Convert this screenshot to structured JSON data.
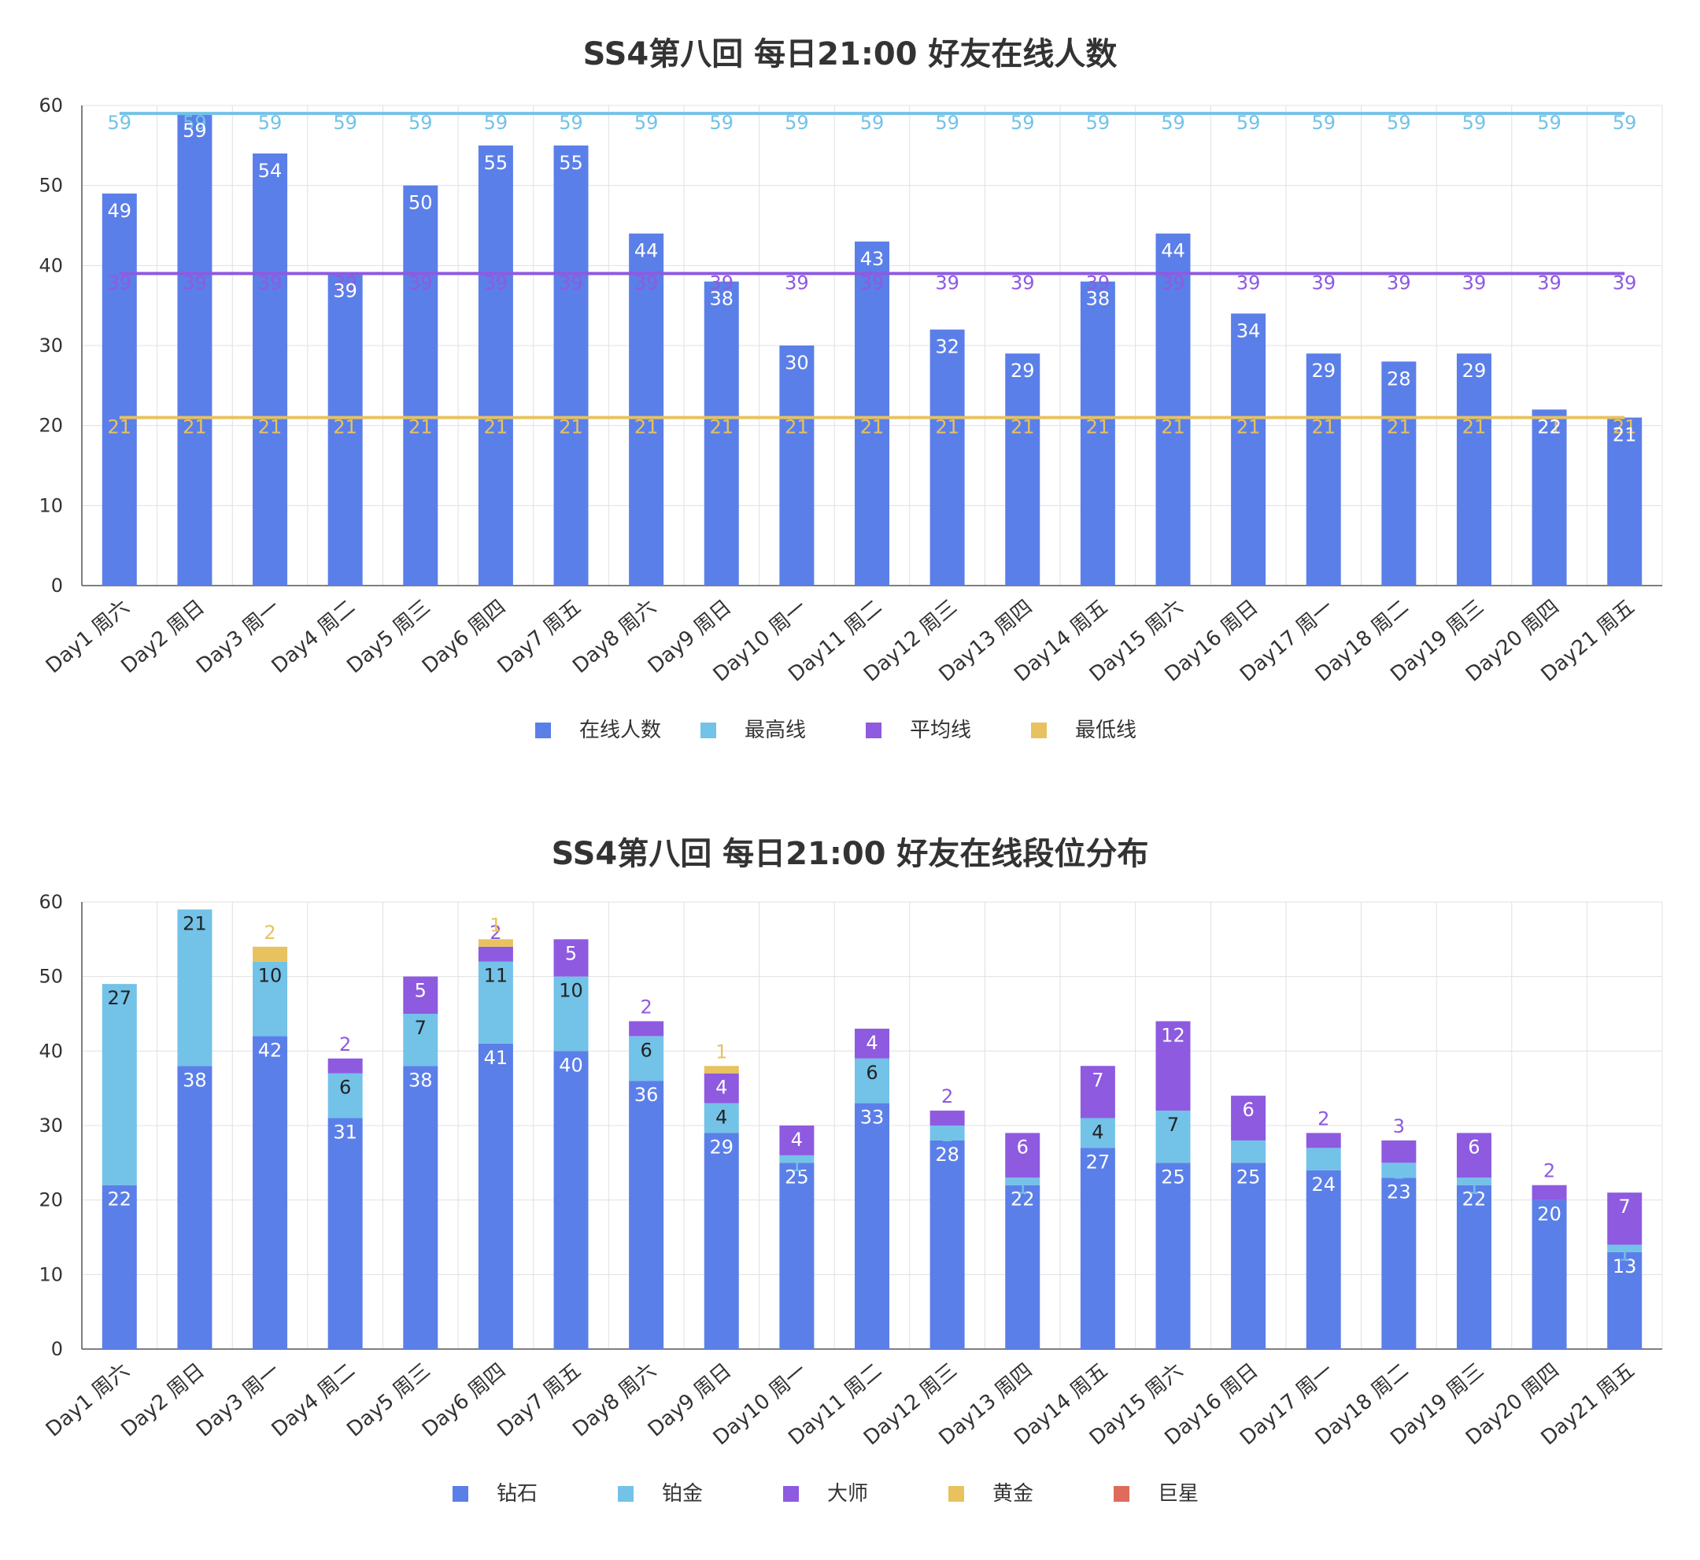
{
  "chart_data": [
    {
      "type": "bar",
      "title": "SS4第八回 每日21:00 好友在线人数",
      "categories": [
        "Day1 周六",
        "Day2 周日",
        "Day3 周一",
        "Day4 周二",
        "Day5 周三",
        "Day6 周四",
        "Day7 周五",
        "Day8 周六",
        "Day9 周日",
        "Day10 周一",
        "Day11 周二",
        "Day12 周三",
        "Day13 周四",
        "Day14 周五",
        "Day15 周六",
        "Day16 周日",
        "Day17 周一",
        "Day18 周二",
        "Day19 周三",
        "Day20 周四",
        "Day21 周五"
      ],
      "ylim": [
        0,
        60
      ],
      "yticks": [
        0,
        10,
        20,
        30,
        40,
        50,
        60
      ],
      "series": [
        {
          "name": "在线人数",
          "kind": "bar",
          "color": "#5b7fe8",
          "values": [
            49,
            59,
            54,
            39,
            50,
            55,
            55,
            44,
            38,
            30,
            43,
            32,
            29,
            38,
            44,
            34,
            29,
            28,
            29,
            22,
            21
          ]
        },
        {
          "name": "最高线",
          "kind": "line",
          "color": "#73c2e8",
          "values": [
            59,
            59,
            59,
            59,
            59,
            59,
            59,
            59,
            59,
            59,
            59,
            59,
            59,
            59,
            59,
            59,
            59,
            59,
            59,
            59,
            59
          ]
        },
        {
          "name": "平均线",
          "kind": "line",
          "color": "#8e5ae0",
          "values": [
            39,
            39,
            39,
            39,
            39,
            39,
            39,
            39,
            39,
            39,
            39,
            39,
            39,
            39,
            39,
            39,
            39,
            39,
            39,
            39,
            39
          ]
        },
        {
          "name": "最低线",
          "kind": "line",
          "color": "#e8c25e",
          "values": [
            21,
            21,
            21,
            21,
            21,
            21,
            21,
            21,
            21,
            21,
            21,
            21,
            21,
            21,
            21,
            21,
            21,
            21,
            21,
            21,
            21
          ]
        }
      ],
      "legend_position": "bottom",
      "grid": true
    },
    {
      "type": "bar",
      "stacked": true,
      "title": "SS4第八回 每日21:00 好友在线段位分布",
      "categories": [
        "Day1 周六",
        "Day2 周日",
        "Day3 周一",
        "Day4 周二",
        "Day5 周三",
        "Day6 周四",
        "Day7 周五",
        "Day8 周六",
        "Day9 周日",
        "Day10 周一",
        "Day11 周二",
        "Day12 周三",
        "Day13 周四",
        "Day14 周五",
        "Day15 周六",
        "Day16 周日",
        "Day17 周一",
        "Day18 周二",
        "Day19 周三",
        "Day20 周四",
        "Day21 周五"
      ],
      "ylim": [
        0,
        60
      ],
      "yticks": [
        0,
        10,
        20,
        30,
        40,
        50,
        60
      ],
      "series": [
        {
          "name": "钻石",
          "color": "#5b7fe8",
          "values": [
            22,
            38,
            42,
            31,
            38,
            41,
            40,
            36,
            29,
            25,
            33,
            28,
            22,
            27,
            25,
            25,
            24,
            23,
            22,
            20,
            13
          ]
        },
        {
          "name": "铂金",
          "color": "#73c2e8",
          "values": [
            27,
            21,
            10,
            6,
            7,
            11,
            10,
            6,
            4,
            1,
            6,
            2,
            1,
            4,
            7,
            3,
            3,
            2,
            1,
            0,
            1
          ]
        },
        {
          "name": "大师",
          "color": "#8e5ae0",
          "values": [
            0,
            0,
            0,
            2,
            5,
            2,
            5,
            2,
            4,
            4,
            4,
            2,
            6,
            7,
            12,
            6,
            2,
            3,
            6,
            2,
            7
          ]
        },
        {
          "name": "黄金",
          "color": "#e8c25e",
          "values": [
            0,
            0,
            2,
            0,
            0,
            1,
            0,
            0,
            1,
            0,
            0,
            0,
            0,
            0,
            0,
            0,
            0,
            0,
            0,
            0,
            0
          ]
        },
        {
          "name": "巨星",
          "color": "#de6b5c",
          "values": [
            0,
            0,
            0,
            0,
            0,
            0,
            0,
            0,
            0,
            0,
            0,
            0,
            0,
            0,
            0,
            0,
            0,
            0,
            0,
            0,
            0
          ]
        }
      ],
      "legend_position": "bottom",
      "grid": true
    }
  ]
}
